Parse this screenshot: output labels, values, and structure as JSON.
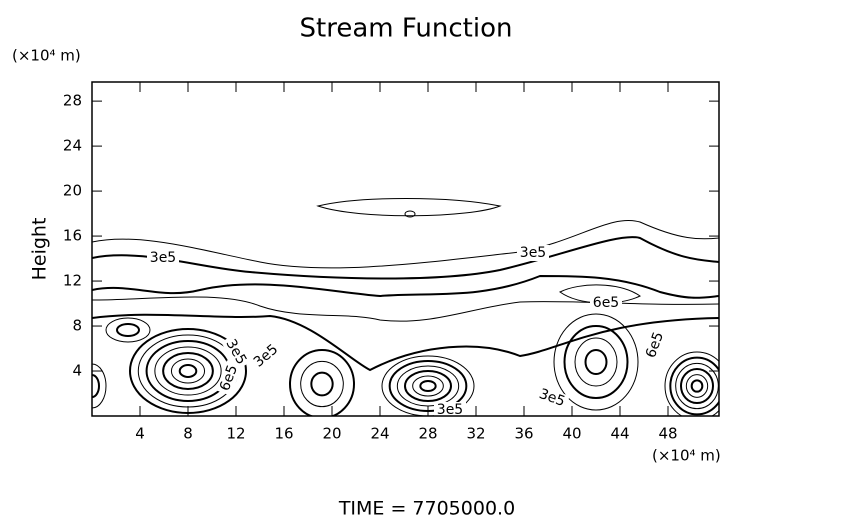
{
  "chart_data": {
    "type": "contour",
    "title": "Stream Function",
    "x_unit": "(×10⁴ m)",
    "y_unit": "(×10⁴ m)",
    "ylabel": "Height",
    "footer": "TIME = 7705000.0",
    "xlim": [
      0,
      52.25
    ],
    "ylim": [
      0,
      29.7
    ],
    "xticks": [
      4,
      8,
      12,
      16,
      20,
      24,
      28,
      32,
      36,
      40,
      44,
      48
    ],
    "yticks": [
      4,
      8,
      12,
      16,
      20,
      24,
      28
    ],
    "contour_labels": [
      "3e5",
      "3e5",
      "6e5",
      "3e5",
      "3e5",
      "6e5",
      "3e5",
      "6e5",
      "3e5"
    ]
  }
}
